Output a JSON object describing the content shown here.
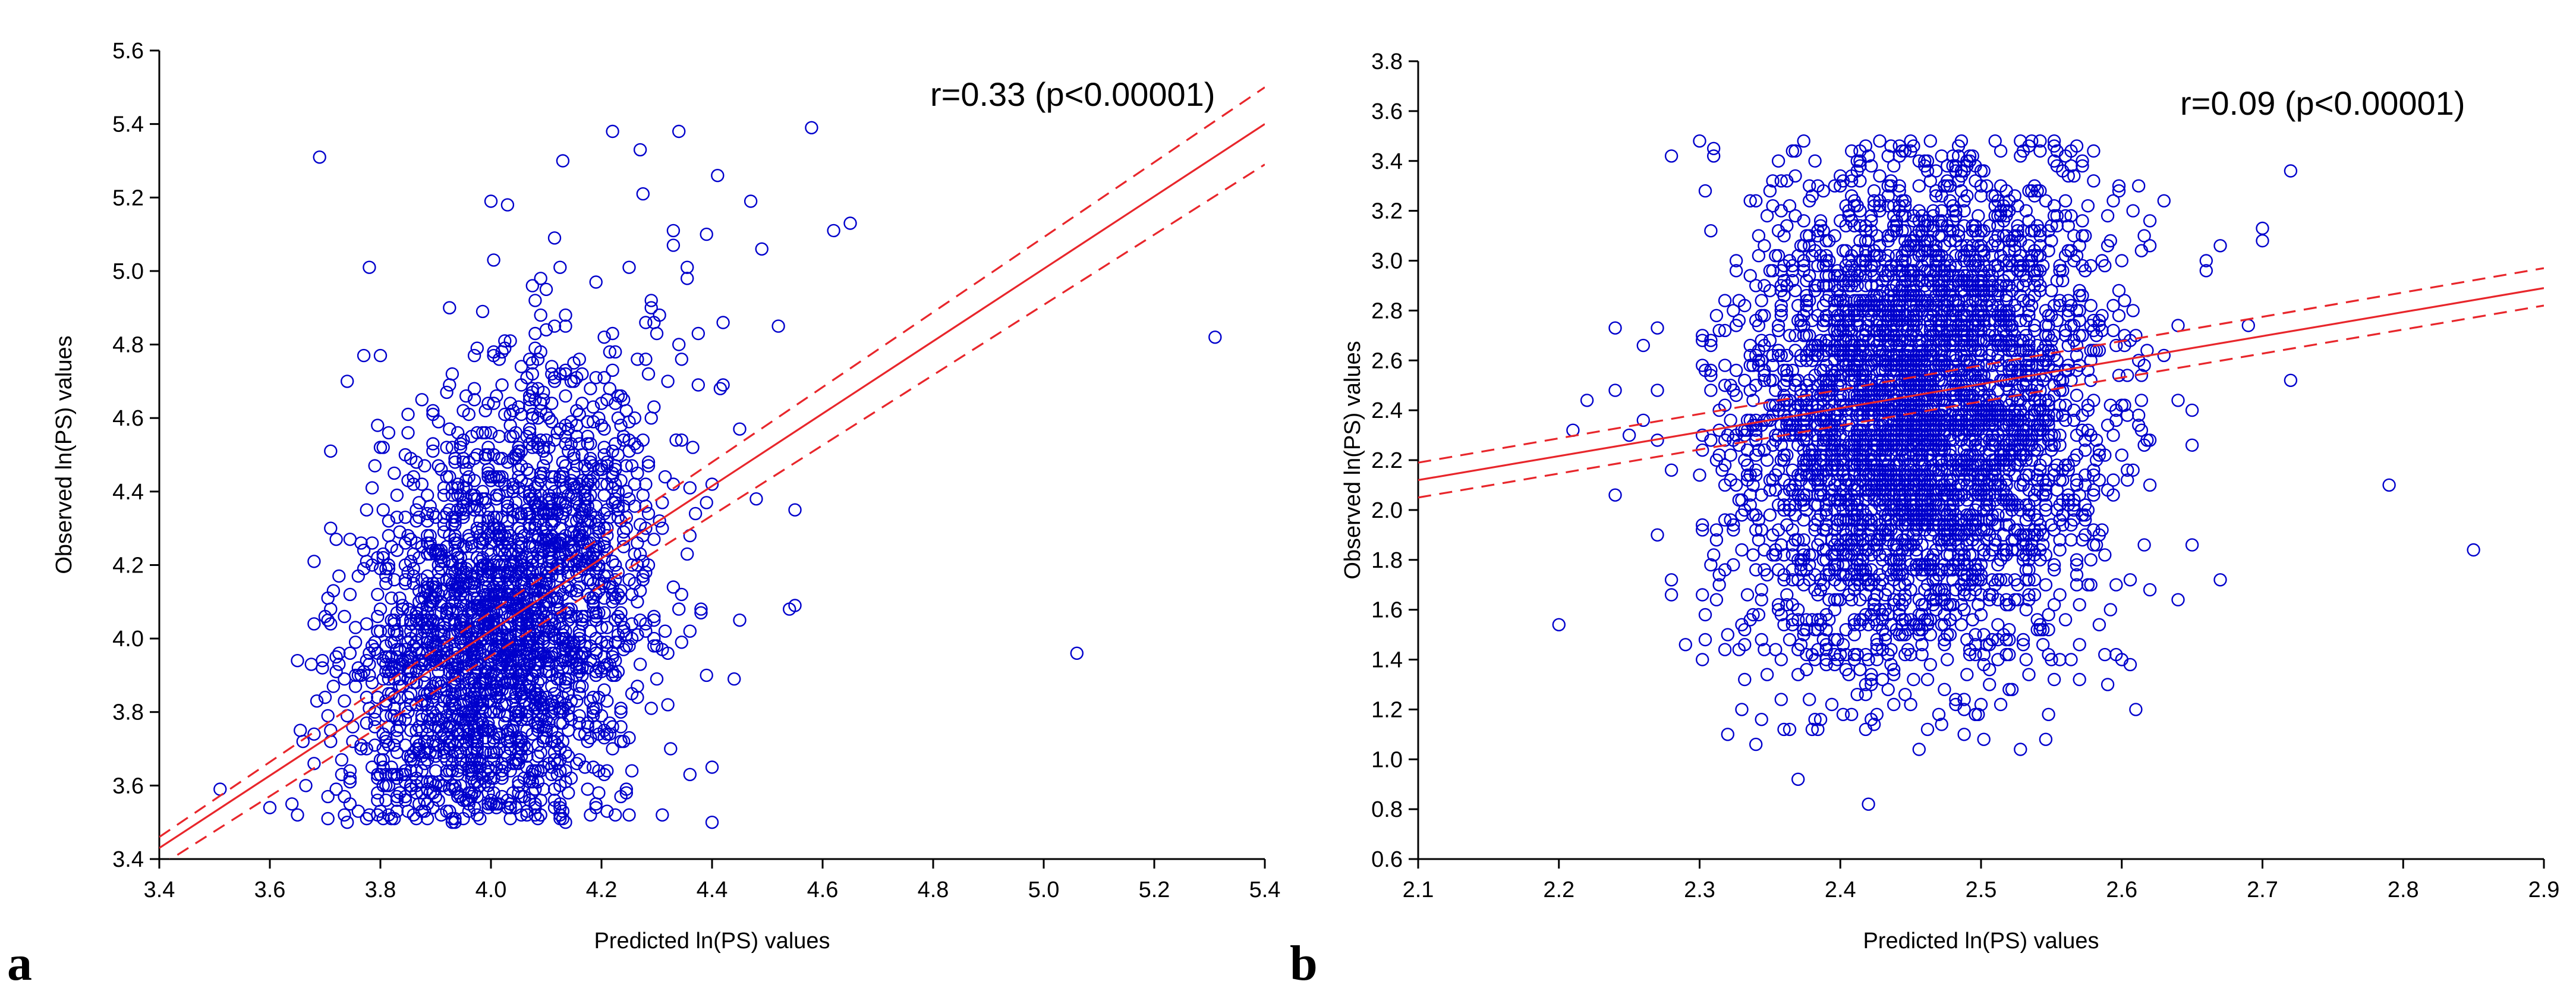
{
  "chart_data": [
    {
      "panel": "a",
      "type": "scatter",
      "title": "",
      "xlabel": "Predicted ln(PS) values",
      "ylabel": "Observed ln(PS) values",
      "xlim": [
        3.4,
        5.4
      ],
      "ylim": [
        3.4,
        5.6
      ],
      "xticks": [
        3.4,
        3.6,
        3.8,
        4.0,
        4.2,
        4.4,
        4.6,
        4.8,
        5.0,
        5.2,
        5.4
      ],
      "xtick_labels": [
        "3.4",
        "3.6",
        "3.8",
        "4.0",
        "4.2",
        "4.4",
        "4.6",
        "4.8",
        "5.0",
        "5.2",
        "5.4"
      ],
      "yticks": [
        3.4,
        3.6,
        3.8,
        4.0,
        4.2,
        4.4,
        4.6,
        4.8,
        5.0,
        5.2,
        5.4,
        5.6
      ],
      "ytick_labels": [
        "3.4",
        "3.6",
        "3.8",
        "4.0",
        "4.2",
        "4.4",
        "4.6",
        "4.8",
        "5.0",
        "5.2",
        "5.4",
        "5.6"
      ],
      "annotation": "r=0.33 (p<0.00001)",
      "marker_color": "#0000cc",
      "line_color": "#e8262b",
      "regression": {
        "x": [
          3.4,
          5.4
        ],
        "y": [
          3.43,
          5.4
        ]
      },
      "confidence_upper": {
        "x": [
          3.4,
          5.4
        ],
        "y": [
          3.46,
          5.5
        ]
      },
      "confidence_lower": {
        "x": [
          3.4,
          5.4
        ],
        "y": [
          3.38,
          5.29
        ]
      },
      "cloud": {
        "n": 2600,
        "x_mean": 4.02,
        "x_sd": 0.14,
        "x_min": 3.62,
        "x_max": 4.42,
        "y_offset": -0.02,
        "y_slope": 1.0,
        "y_sd": 0.33,
        "y_floor": 3.5,
        "y_max": 5.4,
        "x_round": 0.005,
        "y_round": 0.01
      },
      "points": [
        [
          3.51,
          3.59
        ],
        [
          3.69,
          5.31
        ],
        [
          5.31,
          4.82
        ],
        [
          5.06,
          3.96
        ],
        [
          4.58,
          5.39
        ],
        [
          4.62,
          5.11
        ],
        [
          4.65,
          5.13
        ],
        [
          4.52,
          4.85
        ],
        [
          4.55,
          4.35
        ],
        [
          4.55,
          4.09
        ],
        [
          4.54,
          4.08
        ],
        [
          4.45,
          4.05
        ],
        [
          4.34,
          5.38
        ],
        [
          4.22,
          5.38
        ],
        [
          4.41,
          5.26
        ],
        [
          4.47,
          5.19
        ],
        [
          4.4,
          3.5
        ],
        [
          4.4,
          3.65
        ],
        [
          4.48,
          4.38
        ],
        [
          4.49,
          5.06
        ],
        [
          3.78,
          5.01
        ],
        [
          3.71,
          4.51
        ],
        [
          3.68,
          4.21
        ],
        [
          3.65,
          3.94
        ],
        [
          3.66,
          3.72
        ],
        [
          3.64,
          3.55
        ],
        [
          3.6,
          3.54
        ],
        [
          4.13,
          5.3
        ],
        [
          4.42,
          4.86
        ],
        [
          4.39,
          5.1
        ],
        [
          3.74,
          4.7
        ],
        [
          3.77,
          4.77
        ],
        [
          3.8,
          4.77
        ],
        [
          4.0,
          5.19
        ],
        [
          4.03,
          5.18
        ],
        [
          4.27,
          5.33
        ],
        [
          4.45,
          4.57
        ],
        [
          4.44,
          3.89
        ],
        [
          4.31,
          3.52
        ],
        [
          3.74,
          3.5
        ]
      ]
    },
    {
      "panel": "b",
      "type": "scatter",
      "title": "",
      "xlabel": "Predicted ln(PS) values",
      "ylabel": "Observed ln(PS) values",
      "xlim": [
        2.1,
        2.9
      ],
      "ylim": [
        0.6,
        3.8
      ],
      "xticks": [
        2.1,
        2.2,
        2.3,
        2.4,
        2.5,
        2.6,
        2.7,
        2.8,
        2.9
      ],
      "xtick_labels": [
        "2.1",
        "2.2",
        "2.3",
        "2.4",
        "2.5",
        "2.6",
        "2.7",
        "2.8",
        "2.9"
      ],
      "yticks": [
        0.6,
        0.8,
        1.0,
        1.2,
        1.4,
        1.6,
        1.8,
        2.0,
        2.2,
        2.4,
        2.6,
        2.8,
        3.0,
        3.2,
        3.4,
        3.6,
        3.8
      ],
      "ytick_labels": [
        "0.6",
        "0.8",
        "1.0",
        "1.2",
        "1.4",
        "1.6",
        "1.8",
        "2.0",
        "2.2",
        "2.4",
        "2.6",
        "2.8",
        "3.0",
        "3.2",
        "3.4",
        "3.6",
        "3.8"
      ],
      "annotation": "r=0.09 (p<0.00001)",
      "marker_color": "#0000cc",
      "line_color": "#e8262b",
      "regression": {
        "x": [
          2.1,
          2.9
        ],
        "y": [
          2.12,
          2.89
        ]
      },
      "confidence_upper": {
        "x": [
          2.1,
          2.9
        ],
        "y": [
          2.19,
          2.97
        ]
      },
      "confidence_lower": {
        "x": [
          2.1,
          2.9
        ],
        "y": [
          2.05,
          2.82
        ]
      },
      "cloud": {
        "n": 4200,
        "x_mean": 2.455,
        "x_sd": 0.065,
        "x_min": 2.3,
        "x_max": 2.62,
        "y_offset": 0.08,
        "y_slope": 0.95,
        "y_sd": 0.52,
        "y_floor": 1.04,
        "y_max": 3.49,
        "x_round": 0.002,
        "y_round": 0.02
      },
      "points": [
        [
          2.2,
          1.54
        ],
        [
          2.22,
          2.44
        ],
        [
          2.24,
          2.48
        ],
        [
          2.24,
          2.06
        ],
        [
          2.24,
          2.73
        ],
        [
          2.27,
          2.73
        ],
        [
          2.26,
          2.66
        ],
        [
          2.28,
          3.42
        ],
        [
          2.28,
          1.72
        ],
        [
          2.28,
          1.66
        ],
        [
          2.29,
          1.46
        ],
        [
          2.27,
          1.9
        ],
        [
          2.27,
          2.28
        ],
        [
          2.3,
          3.48
        ],
        [
          2.27,
          2.48
        ],
        [
          2.42,
          0.82
        ],
        [
          2.37,
          0.92
        ],
        [
          2.36,
          1.12
        ],
        [
          2.61,
          1.2
        ],
        [
          2.85,
          1.84
        ],
        [
          2.79,
          2.1
        ],
        [
          2.72,
          3.36
        ],
        [
          2.7,
          3.13
        ],
        [
          2.7,
          3.08
        ],
        [
          2.72,
          2.52
        ],
        [
          2.69,
          2.74
        ],
        [
          2.67,
          3.06
        ],
        [
          2.66,
          3.0
        ],
        [
          2.66,
          2.96
        ],
        [
          2.67,
          1.72
        ],
        [
          2.65,
          2.4
        ],
        [
          2.65,
          2.26
        ],
        [
          2.65,
          1.86
        ],
        [
          2.64,
          2.44
        ],
        [
          2.63,
          2.62
        ],
        [
          2.63,
          3.24
        ],
        [
          2.62,
          3.16
        ],
        [
          2.62,
          3.06
        ],
        [
          2.64,
          2.74
        ],
        [
          2.64,
          1.64
        ],
        [
          2.62,
          1.68
        ],
        [
          2.6,
          1.4
        ],
        [
          2.21,
          2.32
        ],
        [
          2.25,
          2.3
        ],
        [
          2.32,
          1.1
        ],
        [
          2.34,
          1.06
        ],
        [
          2.59,
          1.3
        ],
        [
          2.28,
          2.16
        ],
        [
          2.26,
          2.36
        ],
        [
          2.31,
          3.45
        ]
      ]
    }
  ]
}
